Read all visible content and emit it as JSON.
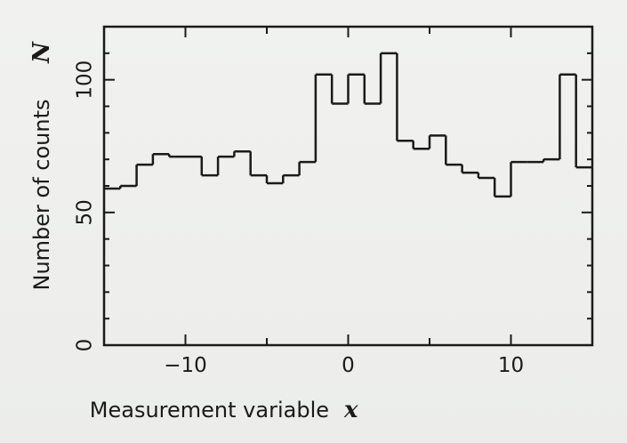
{
  "chart_data": {
    "type": "bar",
    "style": "step-histogram",
    "xlabel": "Measurement variable",
    "xlabel_symbol": "x",
    "ylabel": "Number of counts",
    "ylabel_symbol": "N",
    "xlim": [
      -15,
      15
    ],
    "ylim": [
      0,
      120
    ],
    "x_ticks": [
      -10,
      0,
      10
    ],
    "x_tick_labels": [
      "−10",
      "0",
      "10"
    ],
    "y_ticks": [
      0,
      50,
      100
    ],
    "y_tick_labels": [
      "0",
      "50",
      "100"
    ],
    "grid": false,
    "bin_width": 1,
    "bin_starts": [
      -15,
      -14,
      -13,
      -12,
      -11,
      -10,
      -9,
      -8,
      -7,
      -6,
      -5,
      -4,
      -3,
      -2,
      -1,
      0,
      1,
      2,
      3,
      4,
      5,
      6,
      7,
      8,
      9,
      10,
      11,
      12,
      13,
      14
    ],
    "values": [
      59,
      60,
      68,
      72,
      71,
      71,
      64,
      71,
      73,
      64,
      61,
      64,
      69,
      102,
      91,
      102,
      91,
      110,
      77,
      74,
      79,
      68,
      65,
      63,
      56,
      69,
      69,
      70,
      102,
      67
    ],
    "colors": {
      "line": "#1a1a1a",
      "background": "#eef0ee"
    }
  }
}
